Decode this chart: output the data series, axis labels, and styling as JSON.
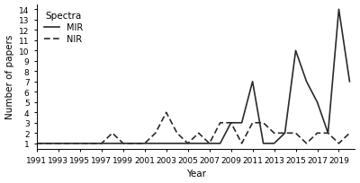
{
  "title": "",
  "xlabel": "Year",
  "ylabel": "Number of papers",
  "legend_title": "Spectra",
  "ylim": [
    0.5,
    14.5
  ],
  "yticks": [
    1,
    2,
    3,
    4,
    5,
    6,
    7,
    8,
    9,
    10,
    11,
    12,
    13,
    14
  ],
  "MIR_years": [
    1991,
    1992,
    1993,
    1994,
    1995,
    1996,
    1997,
    1998,
    1999,
    2000,
    2001,
    2002,
    2003,
    2004,
    2005,
    2006,
    2007,
    2008,
    2009,
    2010,
    2011,
    2012,
    2013,
    2014,
    2015,
    2016,
    2017,
    2018,
    2019,
    2020
  ],
  "MIR_values": [
    1,
    1,
    1,
    1,
    1,
    1,
    1,
    1,
    1,
    1,
    1,
    1,
    1,
    1,
    1,
    1,
    1,
    1,
    3,
    3,
    7,
    1,
    1,
    2,
    10,
    7,
    5,
    2,
    14,
    7
  ],
  "NIR_years": [
    1991,
    1992,
    1993,
    1994,
    1995,
    1996,
    1997,
    1998,
    1999,
    2000,
    2001,
    2002,
    2003,
    2004,
    2005,
    2006,
    2007,
    2008,
    2009,
    2010,
    2011,
    2012,
    2013,
    2014,
    2015,
    2016,
    2017,
    2018,
    2019,
    2020
  ],
  "NIR_values": [
    1,
    1,
    1,
    1,
    1,
    1,
    1,
    2,
    1,
    1,
    1,
    2,
    4,
    2,
    1,
    2,
    1,
    3,
    3,
    1,
    3,
    3,
    2,
    2,
    2,
    1,
    2,
    2,
    1,
    2
  ],
  "MIR_color": "#2a2a2a",
  "NIR_color": "#2a2a2a",
  "MIR_linestyle": "solid",
  "NIR_linestyle": "dashed",
  "MIR_linewidth": 1.2,
  "NIR_linewidth": 1.2,
  "background_color": "#ffffff",
  "xtick_years": [
    1991,
    1993,
    1995,
    1997,
    1999,
    2001,
    2003,
    2005,
    2007,
    2009,
    2011,
    2013,
    2015,
    2017,
    2019
  ],
  "xlim_left": 1991,
  "xlim_right": 2020.5,
  "tick_fontsize": 6.5,
  "label_fontsize": 7.5,
  "legend_title_fontsize": 7.5,
  "legend_fontsize": 7
}
